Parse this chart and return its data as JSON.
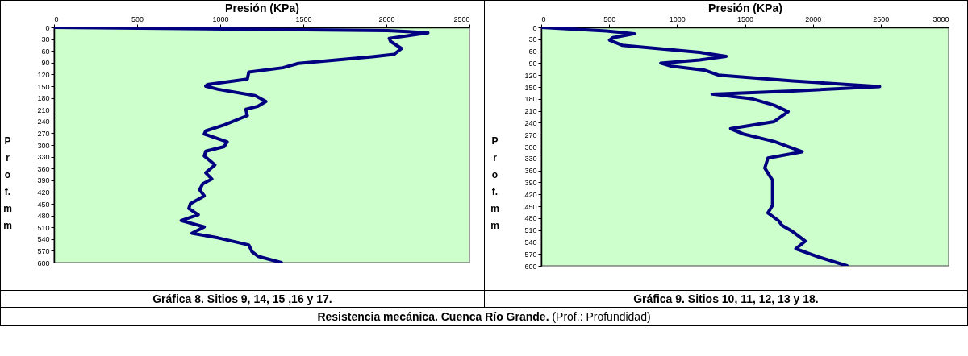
{
  "chart_data": [
    {
      "type": "line",
      "title": "Gráfica 8. Sitios 9, 14, 15 ,16 y 17.",
      "xlabel": "Presión (KPa)",
      "ylabel": "Prof. mm",
      "xlim": [
        0,
        2500
      ],
      "xticks": [
        0,
        500,
        1000,
        1500,
        2000,
        2500
      ],
      "ylim": [
        600,
        0
      ],
      "yticks": [
        0,
        30,
        60,
        90,
        120,
        150,
        180,
        210,
        240,
        270,
        300,
        330,
        360,
        390,
        420,
        450,
        480,
        510,
        540,
        570,
        600
      ],
      "grid": false,
      "legend": false,
      "line_style": "solid",
      "marker": "none",
      "series": [
        {
          "color": "#000080",
          "x": [
            0,
            2007,
            2250,
            2017,
            2026,
            2091,
            2045,
            1915,
            1470,
            1377,
            1172,
            1163,
            922,
            913,
            987,
            1210,
            1275,
            1228,
            1154,
            1163,
            1024,
            913,
            904,
            1042,
            1024,
            913,
            904,
            968,
            913,
            950,
            895,
            876,
            904,
            820,
            811,
            868,
            765,
            904,
            830,
            987,
            1172,
            1191,
            1228,
            1368
          ],
          "values": [
            0,
            8,
            14,
            28,
            36,
            54,
            69,
            75,
            92,
            103,
            114,
            132,
            146,
            150,
            158,
            174,
            189,
            201,
            209,
            225,
            249,
            264,
            272,
            292,
            304,
            316,
            328,
            351,
            371,
            387,
            399,
            414,
            430,
            450,
            462,
            478,
            493,
            509,
            525,
            537,
            555,
            572,
            584,
            600
          ]
        }
      ]
    },
    {
      "type": "line",
      "title": "Gráfica 9. Sitios 10, 11, 12, 13 y 18.",
      "xlabel": "Presión (KPa)",
      "ylabel": "Prof. mm",
      "xlim": [
        0,
        3000
      ],
      "xticks": [
        0,
        500,
        1000,
        1500,
        2000,
        2500,
        3000
      ],
      "ylim": [
        600,
        0
      ],
      "yticks": [
        0,
        30,
        60,
        90,
        120,
        150,
        180,
        210,
        240,
        270,
        300,
        330,
        360,
        390,
        420,
        450,
        480,
        510,
        540,
        570,
        600
      ],
      "grid": false,
      "legend": false,
      "line_style": "solid",
      "marker": "none",
      "annotations": [
        "Resistencia mecánica. Cuenca Río Grande.",
        "(Prof.: Profundidad)"
      ],
      "series": [
        {
          "color": "#000080",
          "x": [
            0,
            480,
            686,
            526,
            503,
            595,
            1166,
            1361,
            1166,
            880,
            960,
            1207,
            1303,
            1852,
            2492,
            1852,
            1258,
            1555,
            1715,
            1818,
            1715,
            1394,
            1486,
            1715,
            1921,
            1669,
            1646,
            1703,
            1703,
            1703,
            1669,
            1749,
            1772,
            1852,
            1944,
            1875,
            2035,
            2252
          ],
          "values": [
            0,
            9,
            16,
            26,
            32,
            45,
            63,
            73,
            82,
            90,
            98,
            108,
            120,
            135,
            149,
            160,
            168,
            180,
            196,
            212,
            237,
            255,
            268,
            287,
            313,
            329,
            354,
            385,
            416,
            448,
            467,
            487,
            498,
            514,
            538,
            557,
            577,
            600
          ]
        }
      ]
    }
  ]
}
